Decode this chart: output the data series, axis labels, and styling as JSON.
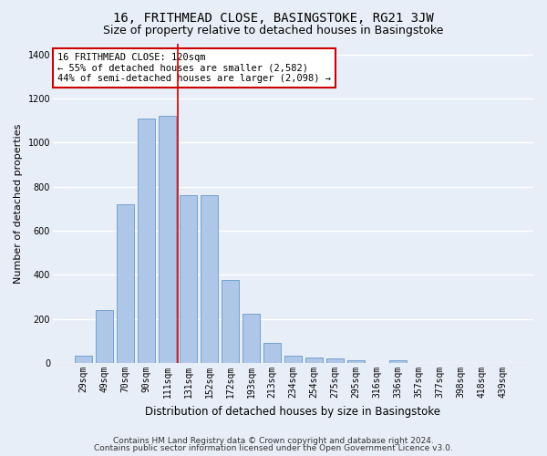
{
  "title": "16, FRITHMEAD CLOSE, BASINGSTOKE, RG21 3JW",
  "subtitle": "Size of property relative to detached houses in Basingstoke",
  "xlabel": "Distribution of detached houses by size in Basingstoke",
  "ylabel": "Number of detached properties",
  "categories": [
    "29sqm",
    "49sqm",
    "70sqm",
    "90sqm",
    "111sqm",
    "131sqm",
    "152sqm",
    "172sqm",
    "193sqm",
    "213sqm",
    "234sqm",
    "254sqm",
    "275sqm",
    "295sqm",
    "316sqm",
    "336sqm",
    "357sqm",
    "377sqm",
    "398sqm",
    "418sqm",
    "439sqm"
  ],
  "values": [
    35,
    240,
    720,
    1110,
    1120,
    760,
    760,
    375,
    225,
    90,
    35,
    25,
    20,
    15,
    0,
    15,
    0,
    0,
    0,
    0,
    0
  ],
  "bar_color": "#aec6e8",
  "bar_edge_color": "#6699cc",
  "vline_x_index": 4.5,
  "vline_color": "#cc0000",
  "annotation_text": "16 FRITHMEAD CLOSE: 120sqm\n← 55% of detached houses are smaller (2,582)\n44% of semi-detached houses are larger (2,098) →",
  "annotation_box_color": "#ffffff",
  "annotation_box_edge_color": "#cc0000",
  "ylim": [
    0,
    1450
  ],
  "yticks": [
    0,
    200,
    400,
    600,
    800,
    1000,
    1200,
    1400
  ],
  "background_color": "#e8eef8",
  "grid_color": "#ffffff",
  "footer_line1": "Contains HM Land Registry data © Crown copyright and database right 2024.",
  "footer_line2": "Contains public sector information licensed under the Open Government Licence v3.0.",
  "title_fontsize": 10,
  "subtitle_fontsize": 9,
  "xlabel_fontsize": 8.5,
  "ylabel_fontsize": 8,
  "tick_fontsize": 7,
  "annotation_fontsize": 7.5,
  "footer_fontsize": 6.5
}
